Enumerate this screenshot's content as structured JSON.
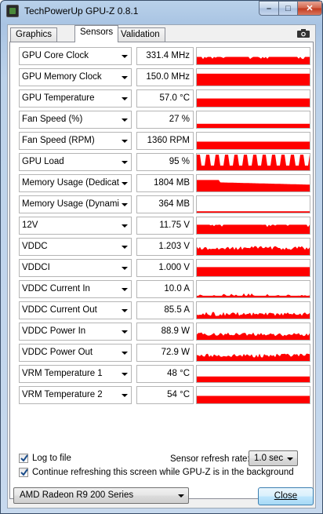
{
  "window": {
    "title": "TechPowerUp GPU-Z 0.8.1",
    "min_glyph": "–",
    "max_glyph": "□",
    "close_glyph": "✕"
  },
  "tabs": [
    {
      "label": "Graphics Card",
      "active": false
    },
    {
      "label": "Sensors",
      "active": true
    },
    {
      "label": "Validation",
      "active": false
    }
  ],
  "graph_color": "#ff0000",
  "sensors": [
    {
      "name": "GPU Core Clock",
      "value": "331.4 MHz",
      "level": 0.45,
      "pattern": "flat-noise"
    },
    {
      "name": "GPU Memory Clock",
      "value": "150.0 MHz",
      "level": 0.72,
      "pattern": "full"
    },
    {
      "name": "GPU Temperature",
      "value": "57.0 °C",
      "level": 0.5,
      "pattern": "flat"
    },
    {
      "name": "Fan Speed (%)",
      "value": "27 %",
      "level": 0.25,
      "pattern": "flat"
    },
    {
      "name": "Fan Speed (RPM)",
      "value": "1360 RPM",
      "level": 0.45,
      "pattern": "flat"
    },
    {
      "name": "GPU Load",
      "value": "95 %",
      "level": 0.95,
      "pattern": "spiky"
    },
    {
      "name": "Memory Usage (Dedicated)",
      "value": "1804 MB",
      "level": 0.55,
      "pattern": "ramp-down"
    },
    {
      "name": "Memory Usage (Dynamic)",
      "value": "364 MB",
      "level": 0.08,
      "pattern": "flat"
    },
    {
      "name": "12V",
      "value": "11.75 V",
      "level": 0.55,
      "pattern": "flat-noise"
    },
    {
      "name": "VDDC",
      "value": "1.203 V",
      "level": 0.55,
      "pattern": "noise"
    },
    {
      "name": "VDDCI",
      "value": "1.000 V",
      "level": 0.55,
      "pattern": "flat"
    },
    {
      "name": "VDDC Current In",
      "value": "10.0 A",
      "level": 0.1,
      "pattern": "low-noise"
    },
    {
      "name": "VDDC Current Out",
      "value": "85.5 A",
      "level": 0.4,
      "pattern": "noise"
    },
    {
      "name": "VDDC Power In",
      "value": "88.9 W",
      "level": 0.45,
      "pattern": "noise"
    },
    {
      "name": "VDDC Power Out",
      "value": "72.9 W",
      "level": 0.45,
      "pattern": "noise"
    },
    {
      "name": "VRM Temperature 1",
      "value": "48 °C",
      "level": 0.35,
      "pattern": "flat"
    },
    {
      "name": "VRM Temperature 2",
      "value": "54 °C",
      "level": 0.45,
      "pattern": "flat"
    }
  ],
  "options": {
    "log_to_file": {
      "label": "Log to file",
      "checked": true
    },
    "continue_refresh": {
      "label": "Continue refreshing this screen while GPU-Z is in the background",
      "checked": true
    },
    "refresh_rate_label": "Sensor refresh rate:",
    "refresh_rate_value": "1.0 sec"
  },
  "footer": {
    "gpu_selected": "AMD Radeon R9 200 Series",
    "close_label": "Close"
  }
}
